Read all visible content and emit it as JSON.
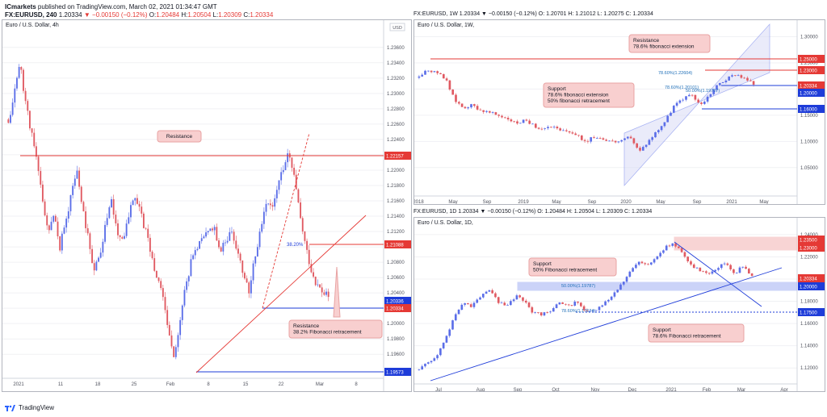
{
  "header": {
    "publisher": "ICmarkets",
    "published_text": "published on TradingView.com, March 02, 2021 01:34:47 GMT",
    "symbol": "FX:EURUSD, 240",
    "quote": "1.20334",
    "change": "−0.00150 (−0.12%)",
    "o": "1.20484",
    "h": "1.20504",
    "l": "1.20309",
    "c": "1.20334"
  },
  "footer": {
    "brand": "TradingView"
  },
  "colors": {
    "up": "#5b6ee8",
    "down": "#e05a62",
    "accent_red": "#e53935",
    "accent_blue": "#1e3cd9",
    "callout": "#f8cfcf"
  },
  "chart_data": [
    {
      "type": "candlestick",
      "title": "Euro / U.S. Dollar, 4h",
      "currency": "USD",
      "ylim": [
        1.1935,
        1.2385
      ],
      "y_ticks": [
        "1.23600",
        "1.23400",
        "1.23200",
        "1.23000",
        "1.22800",
        "1.22600",
        "1.22400",
        "1.22200",
        "1.22000",
        "1.21800",
        "1.21600",
        "1.21400",
        "1.21200",
        "1.21000",
        "1.20800",
        "1.20600",
        "1.20400",
        "1.20200",
        "1.20000",
        "1.19800",
        "1.19600"
      ],
      "x_ticks": [
        "2021",
        "11",
        "18",
        "25",
        "Feb",
        "8",
        "15",
        "22",
        "Mar",
        "8"
      ],
      "price_labels": [
        {
          "value": "1.22157",
          "color": "#e53935"
        },
        {
          "value": "1.21088",
          "color": "#e53935"
        },
        {
          "value": "1.20336",
          "color": "#1e3cd9"
        },
        {
          "value": "1.20334",
          "color": "#e53935"
        },
        {
          "value": "1.19573",
          "color": "#1e3cd9"
        }
      ],
      "annotations": [
        {
          "text": "Resistance"
        },
        {
          "text": "Resistance\n38.2% Fibonacci retracement"
        },
        {
          "text": "38.20%"
        }
      ],
      "close_path": [
        1.226,
        1.23,
        1.234,
        1.229,
        1.225,
        1.221,
        1.216,
        1.212,
        1.214,
        1.21,
        1.213,
        1.217,
        1.22,
        1.215,
        1.211,
        1.207,
        1.209,
        1.213,
        1.216,
        1.212,
        1.211,
        1.214,
        1.217,
        1.215,
        1.212,
        1.209,
        1.206,
        1.204,
        1.199,
        1.196,
        1.2,
        1.205,
        1.208,
        1.21,
        1.211,
        1.212,
        1.213,
        1.209,
        1.211,
        1.212,
        1.21,
        1.207,
        1.204,
        1.208,
        1.212,
        1.216,
        1.215,
        1.218,
        1.22,
        1.222,
        1.219,
        1.214,
        1.21,
        1.207,
        1.205,
        1.204,
        1.2034
      ]
    },
    {
      "type": "candlestick",
      "title": "Euro / U.S. Dollar, 1W,",
      "symbol_line": "FX:EURUSD, 1W 1.20334 ▼ −0.00150 (−0.12%) O: 1.20701 H: 1.21012 L: 1.20275 C: 1.20334",
      "ylim": [
        1.005,
        1.31
      ],
      "y_ticks": [
        "1.30000",
        "1.25000",
        "1.20000",
        "1.15000",
        "1.10000",
        "1.05000"
      ],
      "x_ticks": [
        "2018",
        "May",
        "Sep",
        "2019",
        "May",
        "Sep",
        "2020",
        "May",
        "Sep",
        "2021",
        "May"
      ],
      "price_labels": [
        {
          "value": "1.25000",
          "color": "#e53935"
        },
        {
          "value": "1.23000",
          "color": "#e53935"
        },
        {
          "value": "1.20334",
          "color": "#e53935"
        },
        {
          "value": "1.20000",
          "color": "#1e3cd9"
        },
        {
          "value": "1.16000",
          "color": "#1e3cd9"
        }
      ],
      "annotations": [
        {
          "text": "Resistance\n78.6% fibonacci extension"
        },
        {
          "text": "Support\n78.6% fibonacci extension\n50% fibonacci retracement"
        },
        {
          "text": "78.60%(1.22604)"
        },
        {
          "text": "78.60%(1.20101)"
        },
        {
          "text": "50.00%(1.19707)"
        }
      ],
      "close_path": [
        1.225,
        1.235,
        1.23,
        1.22,
        1.18,
        1.165,
        1.17,
        1.16,
        1.155,
        1.15,
        1.145,
        1.135,
        1.14,
        1.13,
        1.125,
        1.13,
        1.12,
        1.12,
        1.11,
        1.1,
        1.11,
        1.105,
        1.1,
        1.1,
        1.11,
        1.08,
        1.1,
        1.12,
        1.14,
        1.17,
        1.18,
        1.19,
        1.17,
        1.19,
        1.21,
        1.22,
        1.23,
        1.22,
        1.21
      ]
    },
    {
      "type": "candlestick",
      "title": "Euro / U.S. Dollar, 1D,",
      "symbol_line": "FX:EURUSD, 1D 1.20334 ▼ −0.00150 (−0.12%) O: 1.20484 H: 1.20504 L: 1.20309 C: 1.20334",
      "ylim": [
        1.11,
        1.245
      ],
      "y_ticks": [
        "1.24000",
        "1.22000",
        "1.20000",
        "1.18000",
        "1.16000",
        "1.14000",
        "1.12000"
      ],
      "x_ticks": [
        "Jul",
        "Aug",
        "Sep",
        "Oct",
        "Nov",
        "Dec",
        "2021",
        "Feb",
        "Mar",
        "Apr"
      ],
      "price_labels": [
        {
          "value": "1.23500",
          "color": "#e53935"
        },
        {
          "value": "1.23000",
          "color": "#e53935"
        },
        {
          "value": "1.20334",
          "color": "#e53935"
        },
        {
          "value": "1.20000",
          "color": "#1e3cd9"
        },
        {
          "value": "1.17500",
          "color": "#1e3cd9"
        }
      ],
      "annotations": [
        {
          "text": "Support\n50% Fibonacci retracement"
        },
        {
          "text": "Support\n78.6% Fibonacci retracement"
        },
        {
          "text": "50.00%(1.19787)"
        },
        {
          "text": "78.60%(1.17674)"
        }
      ],
      "close_path": [
        1.12,
        1.125,
        1.13,
        1.145,
        1.165,
        1.18,
        1.175,
        1.185,
        1.19,
        1.18,
        1.175,
        1.185,
        1.18,
        1.17,
        1.168,
        1.172,
        1.178,
        1.175,
        1.18,
        1.17,
        1.172,
        1.178,
        1.185,
        1.195,
        1.205,
        1.215,
        1.212,
        1.22,
        1.228,
        1.232,
        1.225,
        1.212,
        1.208,
        1.205,
        1.21,
        1.215,
        1.205,
        1.212,
        1.203
      ]
    }
  ]
}
